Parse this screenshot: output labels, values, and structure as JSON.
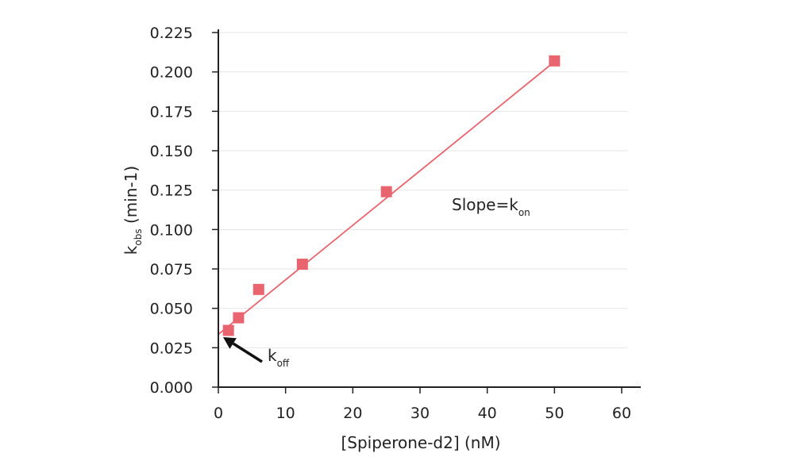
{
  "chart_data": {
    "type": "scatter",
    "xlabel": "[Spiperone-d2] (nM)",
    "ylabel_main": "k",
    "ylabel_sub": "obs",
    "ylabel_rest": " (min-1)",
    "xlim": [
      0,
      60
    ],
    "ylim": [
      0,
      0.225
    ],
    "x_ticks": [
      "0",
      "10",
      "20",
      "30",
      "40",
      "50",
      "60"
    ],
    "y_ticks": [
      "0.000",
      "0.025",
      "0.050",
      "0.075",
      "0.100",
      "0.125",
      "0.150",
      "0.175",
      "0.200",
      "0.225"
    ],
    "grid": "horizontal",
    "series": [
      {
        "x": [
          1.5,
          3,
          6,
          12.5,
          25,
          50
        ],
        "y": [
          0.036,
          0.044,
          0.062,
          0.078,
          0.124,
          0.207
        ]
      }
    ],
    "fit_line": {
      "intercept": 0.0335,
      "slope": 0.00346,
      "x_end": 50
    },
    "annotations": {
      "slope_main": "Slope=k",
      "slope_sub": "on",
      "koff_main": "k",
      "koff_sub": "off"
    },
    "colors": {
      "marker": "#e8646e",
      "line": "#e8646e",
      "grid": "#e6e6e6",
      "axis": "#222222",
      "arrow": "#111111"
    }
  }
}
